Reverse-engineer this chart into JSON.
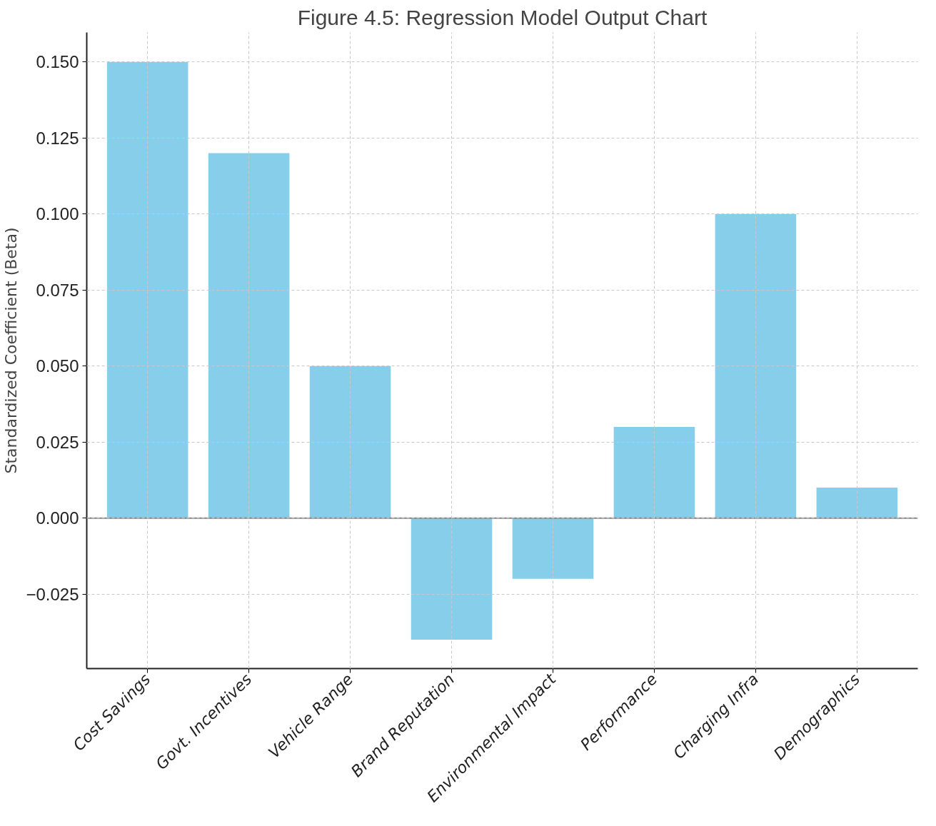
{
  "chart_data": {
    "type": "bar",
    "title": "Figure 4.5: Regression Model Output Chart",
    "ylabel": "Standardized Coefficient (Beta)",
    "categories": [
      "Cost Savings",
      "Govt. Incentives",
      "Vehicle Range",
      "Brand Reputation",
      "Environmental Impact",
      "Performance",
      "Charging Infra",
      "Demographics"
    ],
    "values": [
      0.15,
      0.12,
      0.05,
      -0.04,
      -0.02,
      0.03,
      0.1,
      0.01
    ],
    "color": "#87ceeb",
    "ylim": [
      -0.0495,
      0.1597
    ],
    "yticks": [
      {
        "value": -0.025,
        "label": "−0.025"
      },
      {
        "value": 0,
        "label": "0.000"
      },
      {
        "value": 0.025,
        "label": "0.025"
      },
      {
        "value": 0.05,
        "label": "0.050"
      },
      {
        "value": 0.075,
        "label": "0.075"
      },
      {
        "value": 0.1,
        "label": "0.100"
      },
      {
        "value": 0.125,
        "label": "0.125"
      },
      {
        "value": 0.15,
        "label": "0.150"
      }
    ],
    "grid": true,
    "ref_lines": [
      {
        "axis": "y",
        "value": 0,
        "color": "#808080"
      }
    ]
  }
}
